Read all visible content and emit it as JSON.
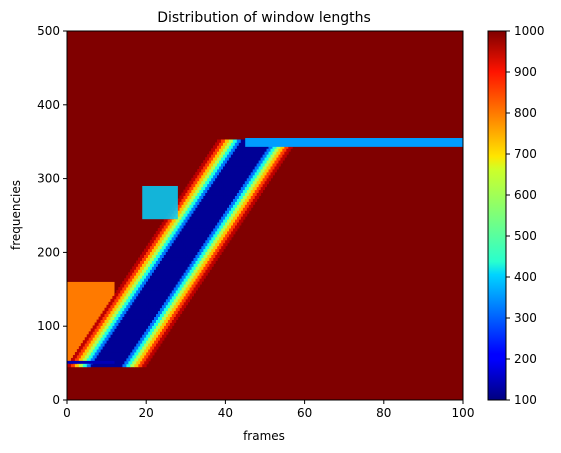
{
  "chart_data": {
    "type": "heatmap",
    "title": "Distribution of window lengths",
    "xlabel": "frames",
    "ylabel": "frequencies",
    "xlim": [
      0,
      100
    ],
    "ylim": [
      0,
      500
    ],
    "x_ticks": [
      0,
      20,
      40,
      60,
      80,
      100
    ],
    "y_ticks": [
      0,
      100,
      200,
      300,
      400,
      500
    ],
    "colormap": "jet",
    "colorbar": {
      "min": 100,
      "max": 1000,
      "ticks": [
        100,
        200,
        300,
        400,
        500,
        600,
        700,
        800,
        900,
        1000
      ]
    },
    "background_value": 1000,
    "features": {
      "diagonal_band": {
        "description_points": [
          [
            10,
            45
          ],
          [
            48,
            350
          ]
        ],
        "core_value": 120,
        "core_halfwidth_frames": 3.5,
        "edge_halfwidth_frames": 10
      },
      "top_horizontal_band": {
        "x_range": [
          45,
          100
        ],
        "y_range": [
          343,
          355
        ],
        "value": 350
      },
      "bottom_horizontal_line": {
        "x_range": [
          0,
          12
        ],
        "y": 51,
        "value": 150
      },
      "left_low_region": {
        "x_range": [
          0,
          12
        ],
        "y_range": [
          45,
          160
        ],
        "value": 780
      },
      "upper_left_patch": {
        "x_range": [
          19,
          28
        ],
        "y_range": [
          245,
          290
        ],
        "value": 400
      }
    }
  }
}
